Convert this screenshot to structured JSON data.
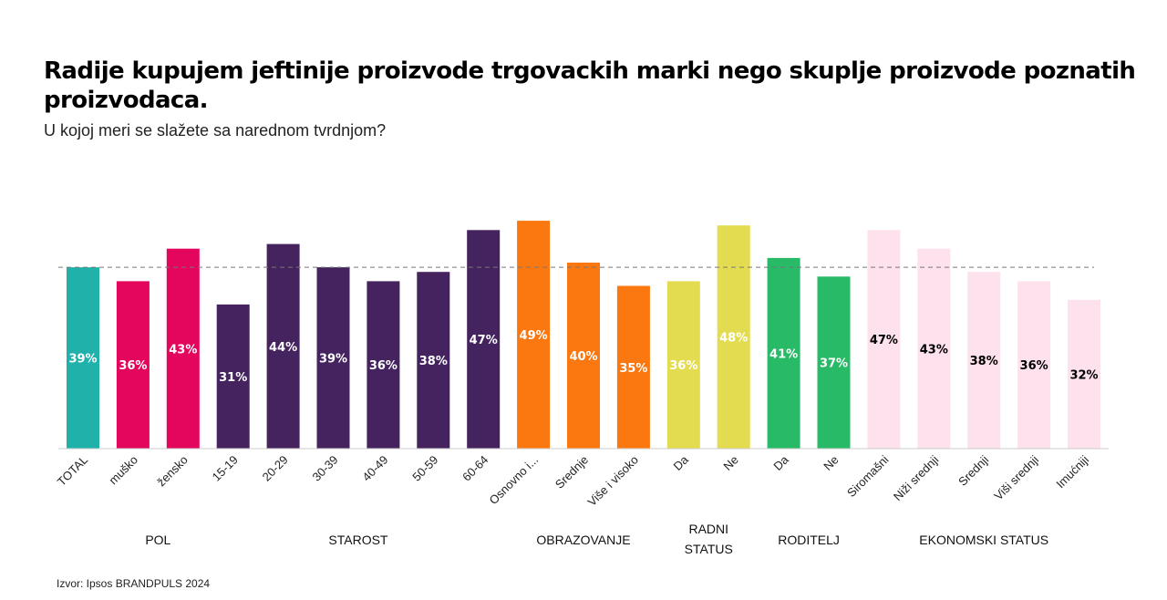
{
  "chart_data": {
    "type": "bar",
    "title": "Radije kupujem jeftinije proizvode trgovackih marki nego skuplje proizvode poznatih proizvodaca.",
    "subtitle": "U kojoj meri se slažete sa narednom tvrdnjom?",
    "source": "Izvor: Ipsos BRANDPULS 2024",
    "ylim": [
      0,
      52
    ],
    "reference_line": 39,
    "grid": false,
    "categories": [
      "TOTAL",
      "muško",
      "žensko",
      "15-19",
      "20-29",
      "30-39",
      "40-49",
      "50-59",
      "60-64",
      "Osnovno i...",
      "Srednje",
      "Više i visoko",
      "Da",
      "Ne",
      "Da",
      "Ne",
      "Siromašni",
      "Niži srednji",
      "Srednji",
      "Viši srednji",
      "Imućniji"
    ],
    "values": [
      39,
      36,
      43,
      31,
      44,
      39,
      36,
      38,
      47,
      49,
      40,
      35,
      36,
      48,
      41,
      37,
      47,
      43,
      38,
      36,
      32
    ],
    "value_labels": [
      "39%",
      "36%",
      "43%",
      "31%",
      "44%",
      "39%",
      "36%",
      "38%",
      "47%",
      "49%",
      "40%",
      "35%",
      "36%",
      "48%",
      "41%",
      "37%",
      "47%",
      "43%",
      "38%",
      "36%",
      "32%"
    ],
    "colors": [
      "#20b2aa",
      "#e4055d",
      "#e4055d",
      "#44235f",
      "#44235f",
      "#44235f",
      "#44235f",
      "#44235f",
      "#44235f",
      "#fb7710",
      "#fb7710",
      "#fb7710",
      "#e3dc50",
      "#e3dc50",
      "#29ba68",
      "#29ba68",
      "#fde1ec",
      "#fde1ec",
      "#fde1ec",
      "#fde1ec",
      "#fde1ec"
    ],
    "label_colors": [
      "#ffffff",
      "#ffffff",
      "#ffffff",
      "#ffffff",
      "#ffffff",
      "#ffffff",
      "#ffffff",
      "#ffffff",
      "#ffffff",
      "#ffffff",
      "#ffffff",
      "#ffffff",
      "#ffffff",
      "#ffffff",
      "#ffffff",
      "#ffffff",
      "#000000",
      "#000000",
      "#000000",
      "#000000",
      "#000000"
    ],
    "groups": [
      {
        "label": "",
        "first": 0,
        "last": 0
      },
      {
        "label": "POL",
        "first": 1,
        "last": 2
      },
      {
        "label": "STAROST",
        "first": 3,
        "last": 8
      },
      {
        "label": "OBRAZOVANJE",
        "first": 9,
        "last": 11
      },
      {
        "label": "RADNI\nSTATUS",
        "first": 12,
        "last": 13
      },
      {
        "label": "RODITELJ",
        "first": 14,
        "last": 15
      },
      {
        "label": "EKONOMSKI STATUS",
        "first": 16,
        "last": 20
      }
    ]
  }
}
